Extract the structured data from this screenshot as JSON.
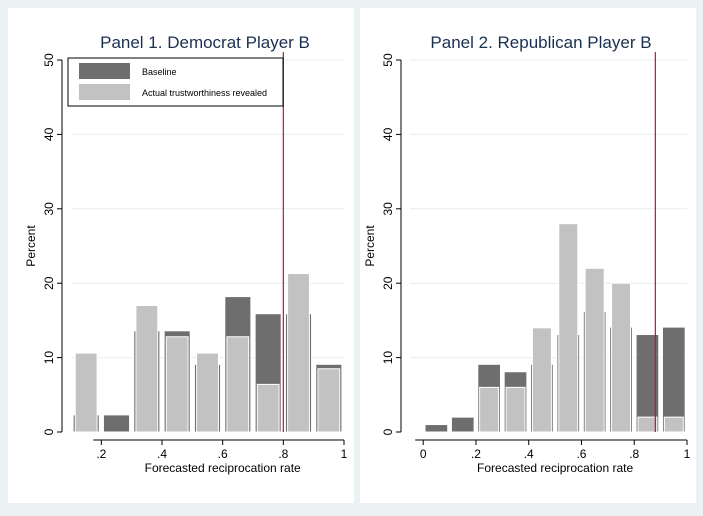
{
  "colors": {
    "figure_bg": "#eaf2f3",
    "panel_bg": "#ffffff",
    "baseline_bar": "#6e6e6e",
    "revealed_bar": "#c2c2c2",
    "bar_stroke": "#ffffff",
    "gridline": "#e6eef0",
    "reference_line": "#c0103c",
    "title": "#1a3050"
  },
  "chart_data": [
    {
      "type": "bar",
      "title": "Panel 1. Democrat Player B",
      "xlabel": "Forecasted reciprocation rate",
      "ylabel": "Percent",
      "xlim": [
        0.1,
        1.0
      ],
      "ylim": [
        0,
        50
      ],
      "xticks": [
        0.2,
        0.4,
        0.6,
        0.8,
        1.0
      ],
      "xtick_labels": [
        ".2",
        ".4",
        ".6",
        ".8",
        "1"
      ],
      "yticks": [
        0,
        10,
        20,
        30,
        40,
        50
      ],
      "ytick_labels": [
        "0",
        "10",
        "20",
        "30",
        "40",
        "50"
      ],
      "grid": true,
      "legend": {
        "position": "top-left",
        "entries": [
          "Baseline",
          "Actual trustworthiness revealed"
        ]
      },
      "reference_line_x": 0.8,
      "bin_centers": [
        0.15,
        0.25,
        0.35,
        0.45,
        0.55,
        0.65,
        0.75,
        0.85,
        0.95
      ],
      "series": [
        {
          "name": "Baseline",
          "values": [
            2.3,
            2.3,
            13.6,
            13.6,
            9.1,
            18.2,
            15.9,
            15.9,
            9.1
          ]
        },
        {
          "name": "Actual trustworthiness revealed",
          "values": [
            10.6,
            0,
            17.0,
            12.8,
            10.6,
            12.8,
            6.4,
            21.3,
            8.5
          ]
        }
      ]
    },
    {
      "type": "bar",
      "title": "Panel 2. Republican Player B",
      "xlabel": "Forecasted reciprocation rate",
      "ylabel": "Percent",
      "xlim": [
        -0.05,
        1.0
      ],
      "ylim": [
        0,
        50
      ],
      "xticks": [
        0,
        0.2,
        0.4,
        0.6,
        0.8,
        1.0
      ],
      "xtick_labels": [
        "0",
        ".2",
        ".4",
        ".6",
        ".8",
        "1"
      ],
      "yticks": [
        0,
        10,
        20,
        30,
        40,
        50
      ],
      "ytick_labels": [
        "0",
        "10",
        "20",
        "30",
        "40",
        "50"
      ],
      "grid": true,
      "reference_line_x": 0.88,
      "bin_centers": [
        0.05,
        0.15,
        0.25,
        0.35,
        0.45,
        0.55,
        0.65,
        0.75,
        0.85,
        0.95
      ],
      "series": [
        {
          "name": "Baseline",
          "values": [
            1.0,
            2.0,
            9.1,
            8.1,
            9.1,
            13.1,
            16.2,
            14.1,
            13.1,
            14.1
          ]
        },
        {
          "name": "Actual trustworthiness revealed",
          "values": [
            0,
            0,
            6.0,
            6.0,
            14.0,
            28.0,
            22.0,
            20.0,
            2.0,
            2.0
          ]
        }
      ]
    }
  ]
}
